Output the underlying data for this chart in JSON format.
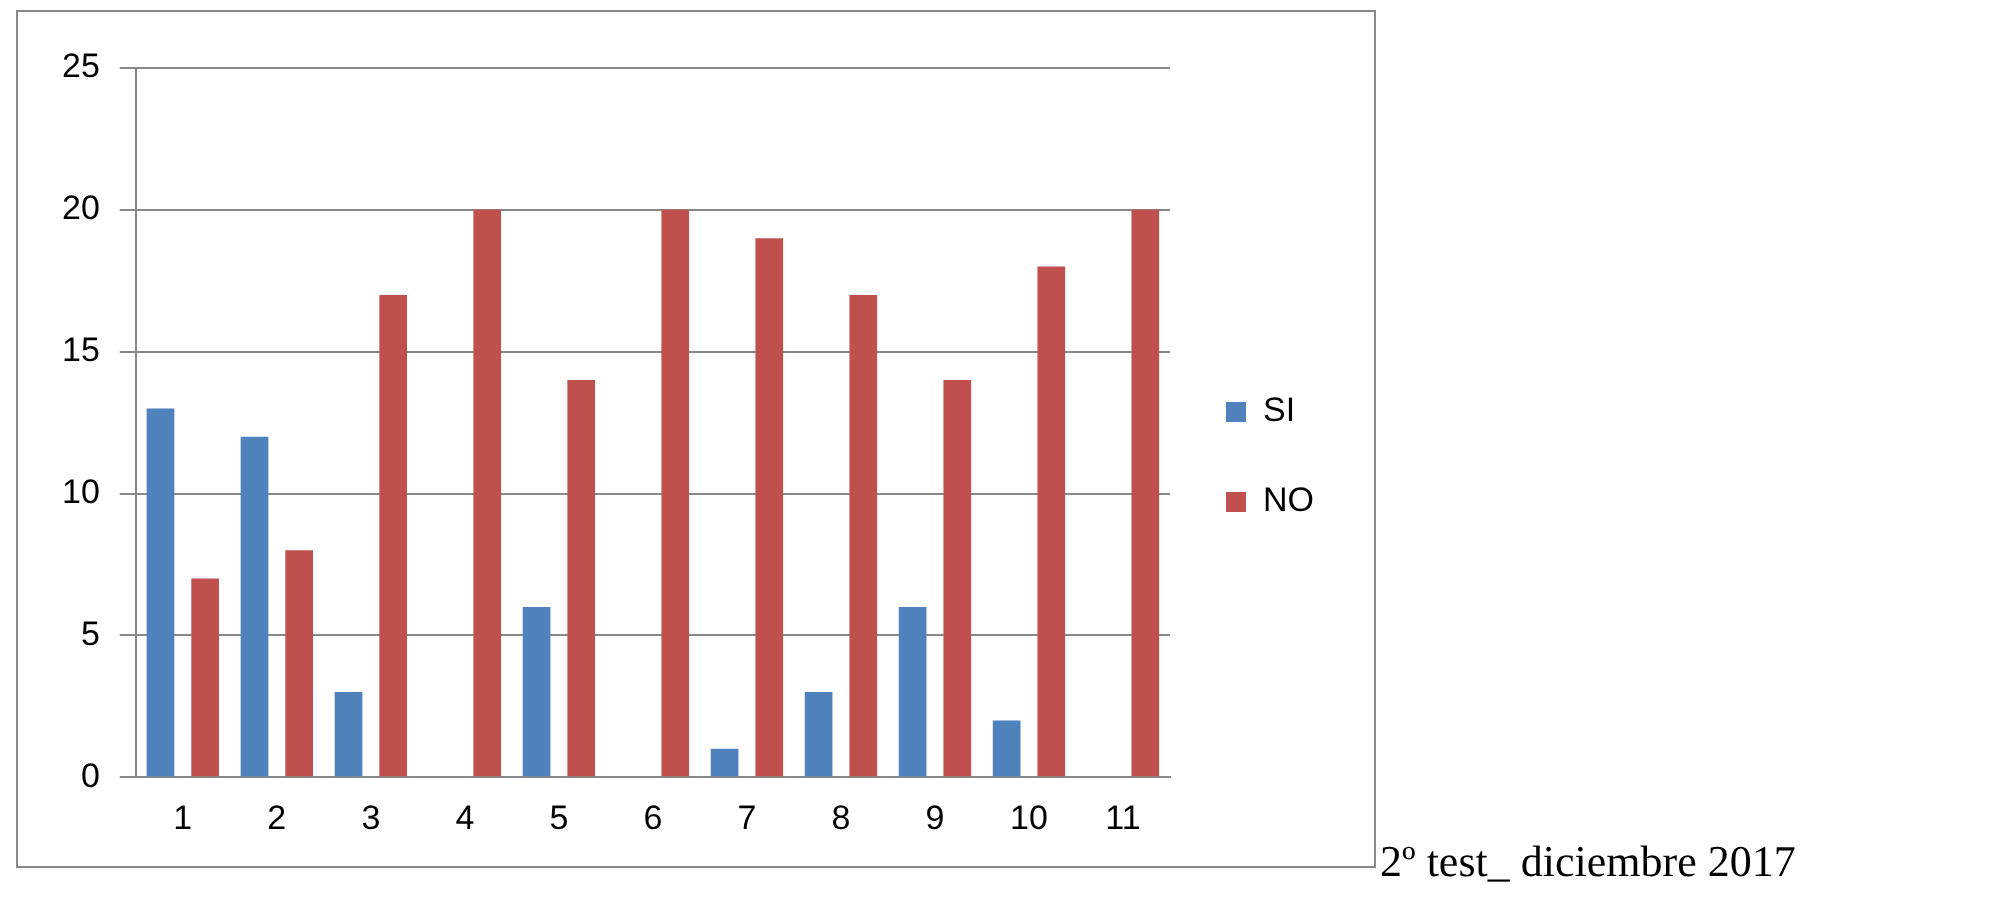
{
  "chart_data": {
    "type": "bar",
    "categories": [
      "1",
      "2",
      "3",
      "4",
      "5",
      "6",
      "7",
      "8",
      "9",
      "10",
      "11"
    ],
    "series": [
      {
        "name": "SI",
        "color": "#4f81bd",
        "values": [
          13,
          12,
          3,
          0,
          6,
          0,
          1,
          3,
          6,
          2,
          0
        ]
      },
      {
        "name": "NO",
        "color": "#c0504d",
        "values": [
          7,
          8,
          17,
          20,
          14,
          20,
          19,
          17,
          14,
          18,
          20
        ]
      }
    ],
    "ylim": [
      0,
      25
    ],
    "yticks": [
      0,
      5,
      10,
      15,
      20,
      25
    ],
    "grid": "y",
    "legend": "right",
    "annotations": [
      "2º test_ diciembre 2017"
    ]
  }
}
